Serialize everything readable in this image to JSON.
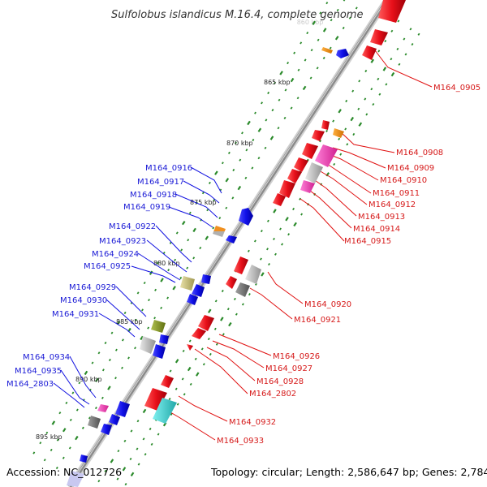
{
  "title": "Sulfolobus islandicus M.16.4, complete genome",
  "ghost_label": "860 kbp",
  "footer": {
    "accession": "Accession: NC_012726",
    "summary": "Topology: circular; Length: 2,586,647 bp; Genes: 2,784"
  },
  "kbp_markers": [
    "865 kbp",
    "870 kbp",
    "875 kbp",
    "880 kbp",
    "885 kbp",
    "890 kbp",
    "895 kbp"
  ],
  "left_genes": [
    "M164_0916",
    "M164_0917",
    "M164_0918",
    "M164_0919",
    "M164_0922",
    "M164_0923",
    "M164_0924",
    "M164_0925",
    "M164_0929",
    "M164_0930",
    "M164_0931",
    "M164_0934",
    "M164_0935",
    "M164_2803"
  ],
  "right_genes": [
    "M164_0905",
    "M164_0908",
    "M164_0909",
    "M164_0910",
    "M164_0911",
    "M164_0912",
    "M164_0913",
    "M164_0914",
    "M164_0915",
    "M164_0920",
    "M164_0921",
    "M164_0926",
    "M164_0927",
    "M164_0928",
    "M164_2802",
    "M164_0932",
    "M164_0933"
  ],
  "colors": {
    "forward_strand": "#e8101a",
    "reverse_strand": "#1010e8",
    "left_label": "#1a1ad6",
    "right_label": "#d61a1a",
    "backbone": "#9a9a9a",
    "tick": "#2a8a2a",
    "rna_orange": "#f08c10",
    "magenta": "#f040b8",
    "grey": "#b8b8b8",
    "dark_grey": "#707070",
    "olive": "#8a9a30",
    "khaki": "#c8c080",
    "cyan": "#30c8c8"
  }
}
